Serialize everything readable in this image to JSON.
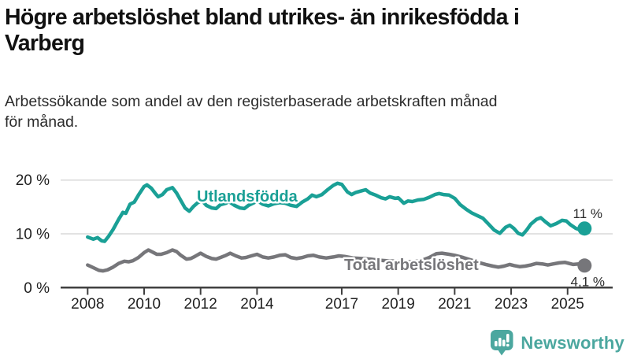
{
  "header": {
    "title_lines": [
      "Högre arbetslöshet bland utrikes- än inrikesfödda i",
      "Varberg"
    ],
    "subtitle_lines": [
      "Arbetssökande som andel av den registerbaserade arbetskraften månad",
      "för månad."
    ]
  },
  "footer": {
    "brand": "Newsworthy",
    "logo_icon": "bar-chart-speech-bubble-icon",
    "brand_color": "#4ba79f"
  },
  "chart_data": {
    "type": "line",
    "title": "Högre arbetslöshet bland utrikes- än inrikesfödda i Varberg",
    "subtitle": "Arbetssökande som andel av den registerbaserade arbetskraften månad för månad.",
    "x_unit": "decimal_year",
    "y_unit": "%",
    "xlim": [
      2007.0,
      2026.3
    ],
    "ylim": [
      0,
      22
    ],
    "grid": "horizontal-only",
    "legend": "inline-labels",
    "xticks": [
      {
        "value": 2008,
        "label": "2008"
      },
      {
        "value": 2010,
        "label": "2010"
      },
      {
        "value": 2012,
        "label": "2012"
      },
      {
        "value": 2014,
        "label": "2014"
      },
      {
        "value": 2017,
        "label": "2017"
      },
      {
        "value": 2019,
        "label": "2019"
      },
      {
        "value": 2021,
        "label": "2021"
      },
      {
        "value": 2023,
        "label": "2023"
      },
      {
        "value": 2025,
        "label": "2025"
      }
    ],
    "yticks": [
      {
        "value": 0,
        "label": "0 %"
      },
      {
        "value": 10,
        "label": "10 %"
      },
      {
        "value": 20,
        "label": "20 %"
      }
    ],
    "series": [
      {
        "name": "Utlandsfödda",
        "color": "#1aa096",
        "end_label": "11 %",
        "end_value": 11.0,
        "points": [
          [
            2008.0,
            9.4
          ],
          [
            2008.2,
            9.0
          ],
          [
            2008.35,
            9.3
          ],
          [
            2008.5,
            8.7
          ],
          [
            2008.6,
            8.6
          ],
          [
            2008.75,
            9.6
          ],
          [
            2008.9,
            10.8
          ],
          [
            2009.1,
            12.7
          ],
          [
            2009.25,
            14.0
          ],
          [
            2009.35,
            13.8
          ],
          [
            2009.5,
            15.5
          ],
          [
            2009.65,
            15.9
          ],
          [
            2009.8,
            17.2
          ],
          [
            2010.0,
            18.8
          ],
          [
            2010.1,
            19.1
          ],
          [
            2010.25,
            18.5
          ],
          [
            2010.4,
            17.5
          ],
          [
            2010.5,
            16.9
          ],
          [
            2010.65,
            17.3
          ],
          [
            2010.8,
            18.2
          ],
          [
            2011.0,
            18.6
          ],
          [
            2011.15,
            17.6
          ],
          [
            2011.3,
            16.2
          ],
          [
            2011.45,
            14.8
          ],
          [
            2011.6,
            14.2
          ],
          [
            2011.75,
            15.1
          ],
          [
            2011.9,
            15.8
          ],
          [
            2012.05,
            16.2
          ],
          [
            2012.2,
            15.3
          ],
          [
            2012.4,
            14.8
          ],
          [
            2012.55,
            14.7
          ],
          [
            2012.7,
            15.4
          ],
          [
            2012.9,
            15.7
          ],
          [
            2013.0,
            16.0
          ],
          [
            2013.2,
            15.3
          ],
          [
            2013.4,
            14.8
          ],
          [
            2013.55,
            14.7
          ],
          [
            2013.7,
            15.3
          ],
          [
            2013.9,
            15.8
          ],
          [
            2014.0,
            16.2
          ],
          [
            2014.2,
            15.5
          ],
          [
            2014.4,
            15.2
          ],
          [
            2014.6,
            15.6
          ],
          [
            2014.8,
            15.8
          ],
          [
            2015.0,
            15.7
          ],
          [
            2015.2,
            15.3
          ],
          [
            2015.4,
            15.1
          ],
          [
            2015.6,
            15.9
          ],
          [
            2015.8,
            16.5
          ],
          [
            2015.95,
            17.2
          ],
          [
            2016.1,
            16.9
          ],
          [
            2016.3,
            17.3
          ],
          [
            2016.5,
            18.2
          ],
          [
            2016.7,
            19.0
          ],
          [
            2016.85,
            19.4
          ],
          [
            2017.0,
            19.2
          ],
          [
            2017.2,
            17.8
          ],
          [
            2017.35,
            17.3
          ],
          [
            2017.5,
            17.7
          ],
          [
            2017.7,
            18.0
          ],
          [
            2017.85,
            18.2
          ],
          [
            2018.0,
            17.6
          ],
          [
            2018.2,
            17.2
          ],
          [
            2018.4,
            16.7
          ],
          [
            2018.55,
            16.5
          ],
          [
            2018.7,
            16.9
          ],
          [
            2018.9,
            16.6
          ],
          [
            2019.0,
            16.7
          ],
          [
            2019.2,
            15.7
          ],
          [
            2019.35,
            16.1
          ],
          [
            2019.5,
            16.0
          ],
          [
            2019.7,
            16.3
          ],
          [
            2019.9,
            16.4
          ],
          [
            2020.1,
            16.8
          ],
          [
            2020.3,
            17.3
          ],
          [
            2020.45,
            17.5
          ],
          [
            2020.6,
            17.3
          ],
          [
            2020.8,
            17.2
          ],
          [
            2021.0,
            16.6
          ],
          [
            2021.2,
            15.4
          ],
          [
            2021.4,
            14.6
          ],
          [
            2021.6,
            13.9
          ],
          [
            2021.8,
            13.4
          ],
          [
            2022.0,
            12.9
          ],
          [
            2022.2,
            11.8
          ],
          [
            2022.4,
            10.7
          ],
          [
            2022.6,
            10.1
          ],
          [
            2022.8,
            11.2
          ],
          [
            2022.95,
            11.6
          ],
          [
            2023.1,
            11.0
          ],
          [
            2023.25,
            10.1
          ],
          [
            2023.4,
            9.8
          ],
          [
            2023.55,
            10.7
          ],
          [
            2023.7,
            11.8
          ],
          [
            2023.9,
            12.7
          ],
          [
            2024.05,
            13.0
          ],
          [
            2024.2,
            12.3
          ],
          [
            2024.4,
            11.5
          ],
          [
            2024.6,
            11.9
          ],
          [
            2024.8,
            12.5
          ],
          [
            2024.95,
            12.4
          ],
          [
            2025.1,
            11.7
          ],
          [
            2025.3,
            11.0
          ],
          [
            2025.45,
            10.7
          ],
          [
            2025.6,
            11.0
          ]
        ]
      },
      {
        "name": "Total arbetslöshet",
        "color": "#76767a",
        "end_label": "4,1 %",
        "end_value": 4.1,
        "points": [
          [
            2008.0,
            4.2
          ],
          [
            2008.2,
            3.7
          ],
          [
            2008.4,
            3.2
          ],
          [
            2008.55,
            3.1
          ],
          [
            2008.7,
            3.3
          ],
          [
            2008.9,
            3.8
          ],
          [
            2009.1,
            4.5
          ],
          [
            2009.3,
            4.9
          ],
          [
            2009.45,
            4.8
          ],
          [
            2009.6,
            5.0
          ],
          [
            2009.8,
            5.6
          ],
          [
            2010.0,
            6.5
          ],
          [
            2010.15,
            7.0
          ],
          [
            2010.3,
            6.6
          ],
          [
            2010.45,
            6.2
          ],
          [
            2010.6,
            6.2
          ],
          [
            2010.8,
            6.5
          ],
          [
            2011.0,
            7.0
          ],
          [
            2011.15,
            6.7
          ],
          [
            2011.3,
            6.0
          ],
          [
            2011.5,
            5.3
          ],
          [
            2011.65,
            5.4
          ],
          [
            2011.8,
            5.8
          ],
          [
            2012.0,
            6.4
          ],
          [
            2012.2,
            5.8
          ],
          [
            2012.4,
            5.4
          ],
          [
            2012.55,
            5.3
          ],
          [
            2012.7,
            5.6
          ],
          [
            2012.9,
            6.0
          ],
          [
            2013.05,
            6.4
          ],
          [
            2013.25,
            5.9
          ],
          [
            2013.45,
            5.5
          ],
          [
            2013.6,
            5.6
          ],
          [
            2013.8,
            5.9
          ],
          [
            2014.0,
            6.2
          ],
          [
            2014.2,
            5.7
          ],
          [
            2014.4,
            5.5
          ],
          [
            2014.6,
            5.7
          ],
          [
            2014.8,
            6.0
          ],
          [
            2015.0,
            6.1
          ],
          [
            2015.2,
            5.6
          ],
          [
            2015.4,
            5.4
          ],
          [
            2015.6,
            5.6
          ],
          [
            2015.8,
            5.9
          ],
          [
            2016.0,
            6.0
          ],
          [
            2016.2,
            5.7
          ],
          [
            2016.45,
            5.5
          ],
          [
            2016.7,
            5.7
          ],
          [
            2016.9,
            5.9
          ],
          [
            2017.1,
            5.8
          ],
          [
            2017.4,
            5.5
          ],
          [
            2017.7,
            5.4
          ],
          [
            2018.0,
            5.3
          ],
          [
            2018.3,
            5.1
          ],
          [
            2018.6,
            5.0
          ],
          [
            2018.9,
            4.9
          ],
          [
            2019.2,
            4.8
          ],
          [
            2019.5,
            4.8
          ],
          [
            2019.8,
            5.0
          ],
          [
            2020.1,
            5.6
          ],
          [
            2020.35,
            6.3
          ],
          [
            2020.55,
            6.4
          ],
          [
            2020.8,
            6.2
          ],
          [
            2021.0,
            6.0
          ],
          [
            2021.3,
            5.6
          ],
          [
            2021.6,
            5.1
          ],
          [
            2021.9,
            4.6
          ],
          [
            2022.1,
            4.3
          ],
          [
            2022.35,
            4.0
          ],
          [
            2022.55,
            3.8
          ],
          [
            2022.75,
            4.0
          ],
          [
            2022.95,
            4.3
          ],
          [
            2023.1,
            4.1
          ],
          [
            2023.3,
            3.9
          ],
          [
            2023.5,
            4.0
          ],
          [
            2023.7,
            4.2
          ],
          [
            2023.9,
            4.5
          ],
          [
            2024.1,
            4.4
          ],
          [
            2024.3,
            4.2
          ],
          [
            2024.5,
            4.4
          ],
          [
            2024.7,
            4.6
          ],
          [
            2024.9,
            4.7
          ],
          [
            2025.05,
            4.5
          ],
          [
            2025.2,
            4.3
          ],
          [
            2025.4,
            4.4
          ],
          [
            2025.6,
            4.1
          ]
        ]
      }
    ]
  }
}
